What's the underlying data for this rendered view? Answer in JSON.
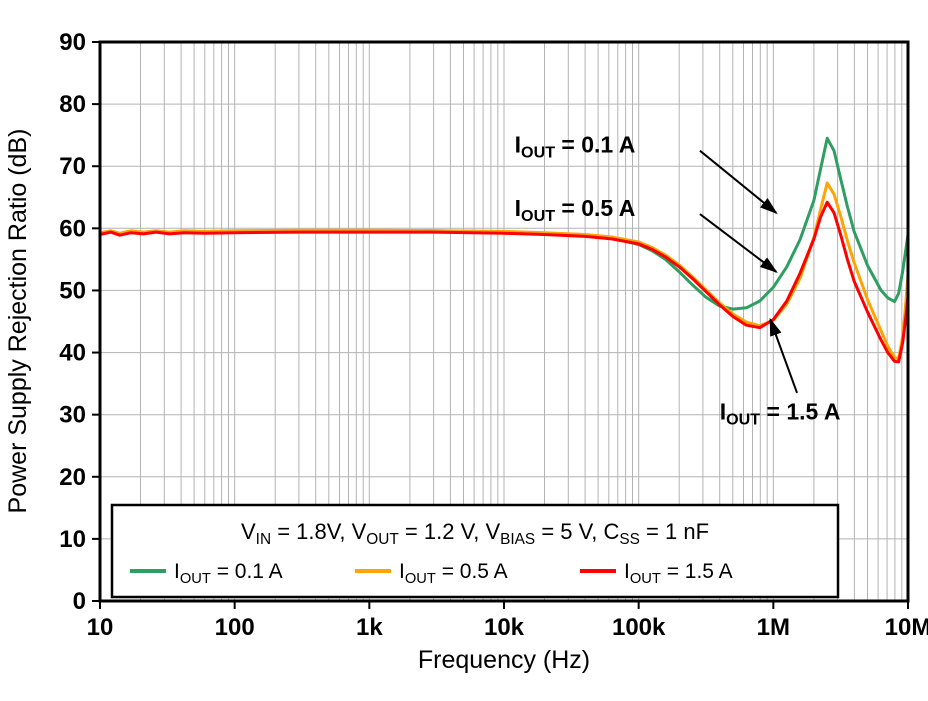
{
  "chart_data": {
    "type": "line",
    "title": "",
    "xlabel": "Frequency (Hz)",
    "ylabel": "Power Supply Rejection Ratio (dB)",
    "x_scale": "log",
    "xlim": [
      10,
      10000000
    ],
    "ylim": [
      0,
      90
    ],
    "y_ticks": [
      0,
      10,
      20,
      30,
      40,
      50,
      60,
      70,
      80,
      90
    ],
    "x_ticks": [
      {
        "value": 10,
        "label": "10"
      },
      {
        "value": 100,
        "label": "100"
      },
      {
        "value": 1000,
        "label": "1k"
      },
      {
        "value": 10000,
        "label": "10k"
      },
      {
        "value": 100000,
        "label": "100k"
      },
      {
        "value": 1000000,
        "label": "1M"
      },
      {
        "value": 10000000,
        "label": "10M"
      }
    ],
    "grid": {
      "color": "#b3b3b3",
      "log_minor_x": true,
      "horizontal_every": 10
    },
    "series": [
      {
        "id": "iout-0p1a",
        "name": "I_{OUT} = 0.1 A",
        "color": "#2F9E62",
        "points": [
          [
            10,
            59.2
          ],
          [
            12,
            59.5
          ],
          [
            14,
            59.1
          ],
          [
            17,
            59.5
          ],
          [
            21,
            59.3
          ],
          [
            26,
            59.5
          ],
          [
            33,
            59.3
          ],
          [
            42,
            59.5
          ],
          [
            60,
            59.4
          ],
          [
            100,
            59.5
          ],
          [
            300,
            59.6
          ],
          [
            1000,
            59.6
          ],
          [
            3000,
            59.6
          ],
          [
            10000,
            59.4
          ],
          [
            20000,
            59.2
          ],
          [
            40000,
            58.9
          ],
          [
            63000,
            58.4
          ],
          [
            100000,
            57.4
          ],
          [
            126000,
            56.4
          ],
          [
            158000,
            55.0
          ],
          [
            200000,
            53.0
          ],
          [
            251000,
            50.9
          ],
          [
            316000,
            48.9
          ],
          [
            398000,
            47.5
          ],
          [
            501000,
            47.0
          ],
          [
            631000,
            47.2
          ],
          [
            794000,
            48.3
          ],
          [
            1000000,
            50.5
          ],
          [
            1260000,
            53.8
          ],
          [
            1580000,
            58.2
          ],
          [
            2000000,
            64.5
          ],
          [
            2240000,
            69.5
          ],
          [
            2510000,
            74.5
          ],
          [
            2820000,
            72.5
          ],
          [
            3160000,
            68.0
          ],
          [
            3550000,
            63.5
          ],
          [
            3980000,
            59.5
          ],
          [
            5010000,
            54.0
          ],
          [
            6310000,
            50.0
          ],
          [
            7080000,
            48.8
          ],
          [
            7940000,
            48.2
          ],
          [
            8510000,
            49.5
          ],
          [
            9120000,
            53.0
          ],
          [
            9550000,
            56.0
          ],
          [
            10000000,
            59.0
          ]
        ]
      },
      {
        "id": "iout-0p5a",
        "name": "I_{OUT} = 0.5 A",
        "color": "#FFA400",
        "points": [
          [
            10,
            59.3
          ],
          [
            12,
            59.6
          ],
          [
            14,
            59.2
          ],
          [
            17,
            59.6
          ],
          [
            21,
            59.4
          ],
          [
            26,
            59.6
          ],
          [
            33,
            59.4
          ],
          [
            42,
            59.6
          ],
          [
            60,
            59.5
          ],
          [
            100,
            59.6
          ],
          [
            300,
            59.7
          ],
          [
            1000,
            59.7
          ],
          [
            3000,
            59.6
          ],
          [
            10000,
            59.5
          ],
          [
            20000,
            59.3
          ],
          [
            40000,
            59.0
          ],
          [
            63000,
            58.6
          ],
          [
            100000,
            57.8
          ],
          [
            126000,
            56.9
          ],
          [
            158000,
            55.7
          ],
          [
            200000,
            54.1
          ],
          [
            251000,
            52.2
          ],
          [
            316000,
            50.1
          ],
          [
            398000,
            48.0
          ],
          [
            501000,
            46.2
          ],
          [
            631000,
            44.9
          ],
          [
            794000,
            44.3
          ],
          [
            1000000,
            45.2
          ],
          [
            1260000,
            47.8
          ],
          [
            1580000,
            52.0
          ],
          [
            2000000,
            58.5
          ],
          [
            2240000,
            63.0
          ],
          [
            2510000,
            67.3
          ],
          [
            2820000,
            65.5
          ],
          [
            3160000,
            62.0
          ],
          [
            3550000,
            58.0
          ],
          [
            3980000,
            54.5
          ],
          [
            5010000,
            48.5
          ],
          [
            6310000,
            43.5
          ],
          [
            7080000,
            41.0
          ],
          [
            7940000,
            39.2
          ],
          [
            8510000,
            39.0
          ],
          [
            9120000,
            42.5
          ],
          [
            9550000,
            47.0
          ],
          [
            10000000,
            52.5
          ]
        ]
      },
      {
        "id": "iout-1p5a",
        "name": "I_{OUT} = 1.5 A",
        "color": "#FF0000",
        "points": [
          [
            10,
            59.0
          ],
          [
            12,
            59.4
          ],
          [
            14,
            58.9
          ],
          [
            17,
            59.3
          ],
          [
            21,
            59.1
          ],
          [
            26,
            59.4
          ],
          [
            33,
            59.1
          ],
          [
            42,
            59.3
          ],
          [
            60,
            59.2
          ],
          [
            100,
            59.3
          ],
          [
            300,
            59.4
          ],
          [
            1000,
            59.4
          ],
          [
            3000,
            59.4
          ],
          [
            10000,
            59.2
          ],
          [
            20000,
            59.0
          ],
          [
            40000,
            58.7
          ],
          [
            63000,
            58.3
          ],
          [
            100000,
            57.5
          ],
          [
            126000,
            56.6
          ],
          [
            158000,
            55.4
          ],
          [
            200000,
            53.8
          ],
          [
            251000,
            51.9
          ],
          [
            316000,
            49.8
          ],
          [
            398000,
            47.7
          ],
          [
            501000,
            45.8
          ],
          [
            631000,
            44.4
          ],
          [
            794000,
            44.0
          ],
          [
            1000000,
            45.3
          ],
          [
            1260000,
            48.3
          ],
          [
            1580000,
            52.8
          ],
          [
            2000000,
            58.3
          ],
          [
            2240000,
            61.8
          ],
          [
            2510000,
            64.2
          ],
          [
            2820000,
            62.5
          ],
          [
            3160000,
            59.0
          ],
          [
            3550000,
            55.0
          ],
          [
            3980000,
            51.5
          ],
          [
            5010000,
            46.5
          ],
          [
            6310000,
            42.0
          ],
          [
            7080000,
            40.0
          ],
          [
            7940000,
            38.6
          ],
          [
            8510000,
            38.5
          ],
          [
            9120000,
            41.5
          ],
          [
            9550000,
            45.0
          ],
          [
            10000000,
            49.0
          ]
        ]
      }
    ],
    "annotations": [
      {
        "label": "I_{OUT} = 0.1 A",
        "text_x": 12000,
        "text_y": 73.5,
        "arrow_from": [
          285000,
          72.5
        ],
        "arrow_to": [
          1050000,
          62.5
        ]
      },
      {
        "label": "I_{OUT} = 0.5 A",
        "text_x": 12000,
        "text_y": 63.3,
        "arrow_from": [
          285000,
          62.3
        ],
        "arrow_to": [
          1050000,
          53.0
        ]
      },
      {
        "label": "I_{OUT} = 1.5 A",
        "text_x": 400000,
        "text_y": 30.5,
        "arrow_from": [
          1500000,
          33.5
        ],
        "arrow_to": [
          950000,
          45.3
        ]
      }
    ],
    "legend": {
      "conditions": "V_{IN} = 1.8V, V_{OUT} = 1.2 V, V_{BIAS} = 5 V, C_{SS} = 1 nF",
      "entries": [
        {
          "label": "I_{OUT} = 0.1 A",
          "color": "#2F9E62"
        },
        {
          "label": "I_{OUT} = 0.5 A",
          "color": "#FFA400"
        },
        {
          "label": "I_{OUT} = 1.5 A",
          "color": "#FF0000"
        }
      ]
    }
  }
}
